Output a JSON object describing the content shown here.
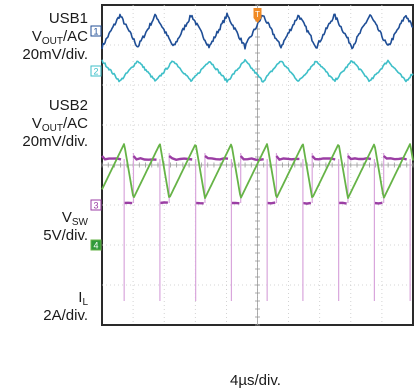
{
  "chart_data": {
    "type": "line",
    "subtype": "oscilloscope-capture",
    "xlabel": "4µs/div.",
    "x_unit": "µs",
    "x_range": [
      0,
      40
    ],
    "grid": true,
    "gridlines_x": 10,
    "gridlines_y": 8,
    "series": [
      {
        "key": "usb1",
        "name_parts": [
          "USB1",
          "V",
          "OUT",
          "/AC"
        ],
        "scale": "20mV/div.",
        "marker": "1",
        "color": "#1f4e96",
        "waveform": "triangle",
        "cycles": 8.7,
        "phase": 0.0,
        "center_div": 3.35,
        "amplitude_div": 0.4,
        "noise_div": 0.05,
        "x": [
          0.0,
          4.6,
          9.2,
          13.8,
          18.4,
          23.0,
          27.6,
          32.2,
          36.8,
          40.0
        ],
        "y": [
          0.0,
          3.2,
          0.0,
          -3.2,
          0.0,
          3.2,
          0.0,
          -3.2,
          0.0,
          0.0
        ]
      },
      {
        "key": "usb2",
        "name_parts": [
          "USB2",
          "V",
          "OUT",
          "/AC"
        ],
        "scale": "20mV/div.",
        "marker": "2",
        "color": "#3ebfc8",
        "waveform": "triangle",
        "cycles": 8.7,
        "phase": 0.5,
        "center_div": 2.35,
        "amplitude_div": 0.26,
        "noise_div": 0.03,
        "x": [
          0.0,
          4.6,
          9.2,
          13.8,
          18.4,
          23.0,
          27.6,
          32.2,
          36.8,
          40.0
        ],
        "y": [
          0.0,
          2.0,
          0.0,
          -2.0,
          0.0,
          2.0,
          0.0,
          -2.0,
          0.0,
          0.0
        ]
      },
      {
        "key": "vsw",
        "name_parts": [
          "V",
          "SW",
          ""
        ],
        "scale": "5V/div.",
        "marker": "3",
        "color": "#9b3ea4",
        "waveform": "pulse",
        "cycles": 8.7,
        "phase": 0.12,
        "duty": 0.74,
        "high_div": 0.15,
        "low_div": -0.95,
        "ground_div": -1.0,
        "spike_div": -3.4,
        "x": [
          0.0,
          4.6,
          9.2,
          13.8,
          18.4,
          23.0,
          27.6,
          32.2,
          36.8,
          40.0
        ],
        "y": [
          5.5,
          0.0,
          5.5,
          0.0,
          5.5,
          0.0,
          5.5,
          0.0,
          5.5,
          0.0
        ]
      },
      {
        "key": "il",
        "name_parts": [
          "I",
          "L",
          ""
        ],
        "scale": "2A/div.",
        "marker": "4",
        "color": "#66b347",
        "waveform": "sawtooth",
        "cycles": 8.7,
        "phase": 0.12,
        "duty": 0.74,
        "center_div": -0.15,
        "amplitude_div": 0.68,
        "ground_div": -2.0,
        "x": [
          0.0,
          4.6,
          9.2,
          13.8,
          18.4,
          23.0,
          27.6,
          32.2,
          36.8,
          40.0
        ],
        "y": [
          2.6,
          5.3,
          2.6,
          5.3,
          2.6,
          5.3,
          2.6,
          5.3,
          2.6,
          5.3
        ]
      }
    ]
  },
  "trigger_marker": "T"
}
